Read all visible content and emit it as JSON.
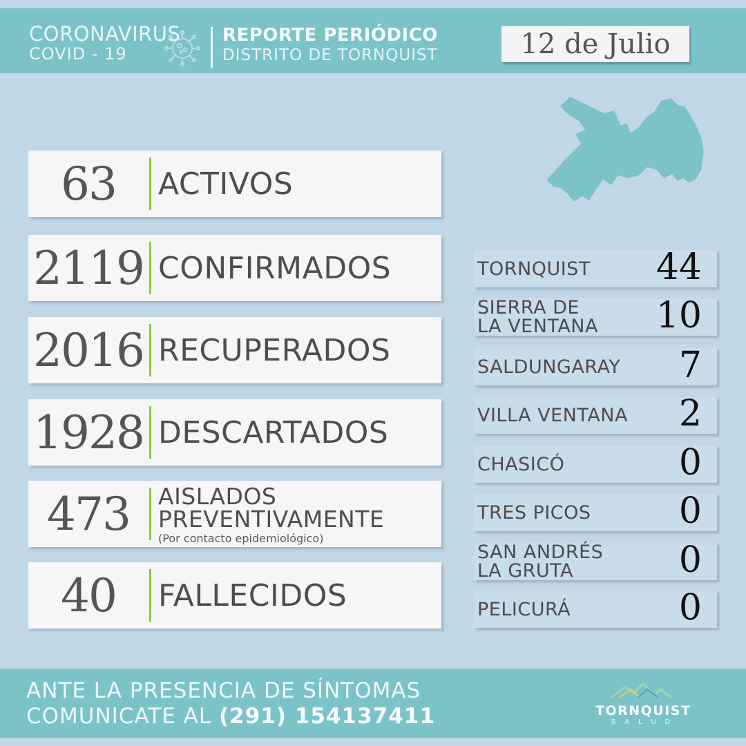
{
  "header": {
    "title_line1": "CORONAVIRUS",
    "title_line2": "COVID - 19",
    "report_line1": "REPORTE PERIÓDICO",
    "report_line2": "DISTRITO DE TORNQUIST",
    "date": "12 de Julio"
  },
  "stats": [
    {
      "value": "63",
      "label": "ACTIVOS"
    },
    {
      "value": "2119",
      "label": "CONFIRMADOS"
    },
    {
      "value": "2016",
      "label": "RECUPERADOS"
    },
    {
      "value": "1928",
      "label": "DESCARTADOS"
    },
    {
      "value": "473",
      "label_line1": "AISLADOS",
      "label_line2": "PREVENTIVAMENTE",
      "note": "(Por contacto epidemiológico)"
    },
    {
      "value": "40",
      "label": "FALLECIDOS"
    }
  ],
  "locations": [
    {
      "line1": "TORNQUIST",
      "line2": "",
      "value": "44"
    },
    {
      "line1": "SIERRA DE",
      "line2": "LA VENTANA",
      "value": "10"
    },
    {
      "line1": "SALDUNGARAY",
      "line2": "",
      "value": "7"
    },
    {
      "line1": "VILLA VENTANA",
      "line2": "",
      "value": "2"
    },
    {
      "line1": "CHASICÓ",
      "line2": "",
      "value": "0"
    },
    {
      "line1": "TRES PICOS",
      "line2": "",
      "value": "0"
    },
    {
      "line1": "SAN ANDRÉS",
      "line2": "LA GRUTA",
      "value": "0"
    },
    {
      "line1": "PELICURÁ",
      "line2": "",
      "value": "0"
    }
  ],
  "footer": {
    "line1": "ANTE LA PRESENCIA DE SÍNTOMAS",
    "line2_prefix": "COMUNICATE AL",
    "phone": "(291) 154137411"
  },
  "logo": {
    "name": "TORNQUIST",
    "sub": "SALUD"
  },
  "icons": {
    "virus": "coronavirus-icon",
    "map": "district-map-icon",
    "logo": "mountains-logo-icon"
  },
  "colors": {
    "teal": "#7cc3c8",
    "background": "#c2d7e6",
    "accent_bar": "#8dc63f"
  }
}
